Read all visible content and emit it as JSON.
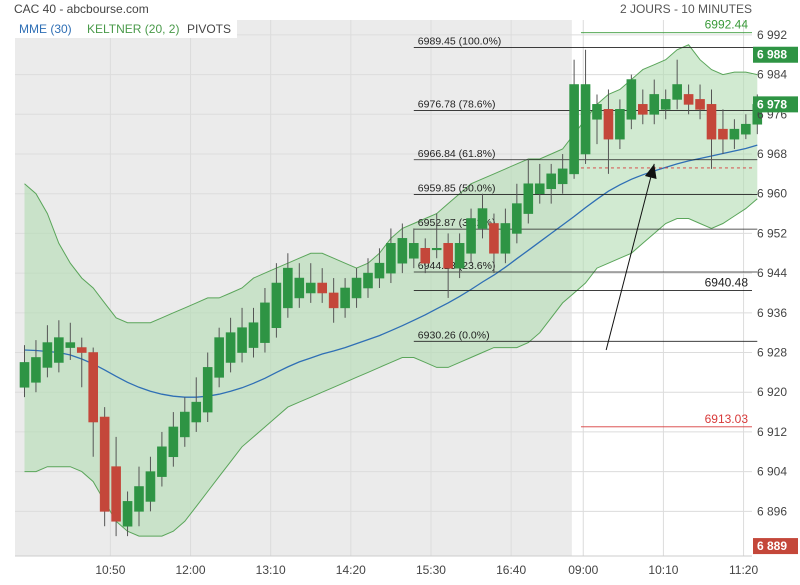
{
  "header": {
    "title": "CAC 40 - abcbourse.com",
    "period": "2 JOURS - 10 MINUTES"
  },
  "legend": [
    {
      "label": "MME (30)",
      "color": "#2f6fb5"
    },
    {
      "label": "KELTNER (20, 2)",
      "color": "#4a9a4a"
    },
    {
      "label": "PIVOTS",
      "color": "#444444"
    }
  ],
  "colors": {
    "up": "#2e9444",
    "down": "#c4473a",
    "band_fill": "#b3dcb3",
    "band_line": "#5aa55a",
    "ema": "#2f6fb5",
    "prev_session_bg": "#ebebeb",
    "grid": "#dcdcdc",
    "pivot_line": "#222222",
    "support": "#d83a3a",
    "resistance": "#3a9a3a"
  },
  "chart_data": {
    "type": "candlestick",
    "ylim": [
      6887,
      6995
    ],
    "y_ticks": [
      "6 992",
      "6 984",
      "6 976",
      "6 968",
      "6 960",
      "6 952",
      "6 944",
      "6 936",
      "6 928",
      "6 920",
      "6 912",
      "6 904",
      "6 896"
    ],
    "y_tick_values": [
      6992,
      6984,
      6976,
      6968,
      6960,
      6952,
      6944,
      6936,
      6928,
      6920,
      6912,
      6904,
      6896
    ],
    "x_ticks": [
      "10:50",
      "12:00",
      "13:10",
      "14:20",
      "15:30",
      "16:40",
      "09:00",
      "10:10",
      "11:20"
    ],
    "x_tick_index": [
      7.5,
      14.5,
      21.5,
      28.5,
      35.5,
      42.5,
      48.8,
      55.8,
      62.8
    ],
    "session_break_index": 47.8,
    "candles": [
      {
        "o": 6921.0,
        "h": 6929.5,
        "l": 6919.0,
        "c": 6926.0
      },
      {
        "o": 6922.0,
        "h": 6930.5,
        "l": 6920.0,
        "c": 6927.0
      },
      {
        "o": 6925.0,
        "h": 6933.5,
        "l": 6923.0,
        "c": 6930.0
      },
      {
        "o": 6926.0,
        "h": 6934.5,
        "l": 6924.0,
        "c": 6931.0
      },
      {
        "o": 6929.0,
        "h": 6934.0,
        "l": 6926.5,
        "c": 6930.0
      },
      {
        "o": 6929.0,
        "h": 6931.0,
        "l": 6921.0,
        "c": 6928.0
      },
      {
        "o": 6928.0,
        "h": 6929.0,
        "l": 6907.0,
        "c": 6914.0
      },
      {
        "o": 6915.0,
        "h": 6917.0,
        "l": 6893.0,
        "c": 6896.0
      },
      {
        "o": 6905.0,
        "h": 6911.0,
        "l": 6891.0,
        "c": 6894.0
      },
      {
        "o": 6893.0,
        "h": 6900.0,
        "l": 6891.0,
        "c": 6898.0
      },
      {
        "o": 6896.0,
        "h": 6905.0,
        "l": 6893.0,
        "c": 6901.0
      },
      {
        "o": 6898.0,
        "h": 6907.0,
        "l": 6896.0,
        "c": 6904.0
      },
      {
        "o": 6903.0,
        "h": 6912.0,
        "l": 6901.0,
        "c": 6909.0
      },
      {
        "o": 6907.0,
        "h": 6916.0,
        "l": 6905.0,
        "c": 6913.0
      },
      {
        "o": 6911.0,
        "h": 6919.0,
        "l": 6909.0,
        "c": 6916.0
      },
      {
        "o": 6914.0,
        "h": 6923.0,
        "l": 6912.0,
        "c": 6918.0
      },
      {
        "o": 6916.0,
        "h": 6928.0,
        "l": 6914.0,
        "c": 6925.0
      },
      {
        "o": 6923.0,
        "h": 6933.0,
        "l": 6921.0,
        "c": 6931.0
      },
      {
        "o": 6926.0,
        "h": 6935.0,
        "l": 6924.0,
        "c": 6932.0
      },
      {
        "o": 6928.0,
        "h": 6937.0,
        "l": 6926.0,
        "c": 6933.0
      },
      {
        "o": 6929.0,
        "h": 6937.0,
        "l": 6927.0,
        "c": 6934.0
      },
      {
        "o": 6930.0,
        "h": 6941.0,
        "l": 6928.0,
        "c": 6938.0
      },
      {
        "o": 6933.0,
        "h": 6946.0,
        "l": 6931.0,
        "c": 6942.0
      },
      {
        "o": 6937.0,
        "h": 6948.0,
        "l": 6935.0,
        "c": 6945.0
      },
      {
        "o": 6939.0,
        "h": 6946.0,
        "l": 6937.0,
        "c": 6943.0
      },
      {
        "o": 6940.0,
        "h": 6946.0,
        "l": 6938.0,
        "c": 6942.0
      },
      {
        "o": 6942.0,
        "h": 6945.0,
        "l": 6938.0,
        "c": 6940.0
      },
      {
        "o": 6940.0,
        "h": 6943.0,
        "l": 6934.0,
        "c": 6937.0
      },
      {
        "o": 6937.0,
        "h": 6943.0,
        "l": 6935.0,
        "c": 6941.0
      },
      {
        "o": 6939.0,
        "h": 6945.0,
        "l": 6937.0,
        "c": 6943.0
      },
      {
        "o": 6941.0,
        "h": 6947.0,
        "l": 6939.0,
        "c": 6944.0
      },
      {
        "o": 6943.0,
        "h": 6949.0,
        "l": 6941.0,
        "c": 6946.0
      },
      {
        "o": 6944.0,
        "h": 6953.0,
        "l": 6942.0,
        "c": 6950.0
      },
      {
        "o": 6946.0,
        "h": 6954.0,
        "l": 6944.0,
        "c": 6951.0
      },
      {
        "o": 6947.0,
        "h": 6953.0,
        "l": 6945.0,
        "c": 6950.0
      },
      {
        "o": 6949.0,
        "h": 6951.0,
        "l": 6944.0,
        "c": 6946.0
      },
      {
        "o": 6949.0,
        "h": 6956.0,
        "l": 6947.0,
        "c": 6949.0
      },
      {
        "o": 6950.0,
        "h": 6952.0,
        "l": 6939.0,
        "c": 6945.0
      },
      {
        "o": 6945.0,
        "h": 6952.0,
        "l": 6943.0,
        "c": 6950.0
      },
      {
        "o": 6948.0,
        "h": 6957.0,
        "l": 6946.0,
        "c": 6955.0
      },
      {
        "o": 6953.0,
        "h": 6960.0,
        "l": 6951.0,
        "c": 6957.0
      },
      {
        "o": 6954.0,
        "h": 6956.0,
        "l": 6944.0,
        "c": 6948.0
      },
      {
        "o": 6948.0,
        "h": 6957.0,
        "l": 6946.0,
        "c": 6954.0
      },
      {
        "o": 6952.0,
        "h": 6962.0,
        "l": 6950.0,
        "c": 6958.0
      },
      {
        "o": 6956.0,
        "h": 6967.0,
        "l": 6954.0,
        "c": 6962.0
      },
      {
        "o": 6960.0,
        "h": 6966.0,
        "l": 6958.0,
        "c": 6962.0
      },
      {
        "o": 6961.0,
        "h": 6966.0,
        "l": 6958.0,
        "c": 6964.0
      },
      {
        "o": 6962.0,
        "h": 6968.0,
        "l": 6960.0,
        "c": 6965.0
      },
      {
        "o": 6964.0,
        "h": 6987.0,
        "l": 6963.0,
        "c": 6982.0
      },
      {
        "o": 6968.0,
        "h": 6989.0,
        "l": 6966.0,
        "c": 6982.0
      },
      {
        "o": 6975.0,
        "h": 6980.0,
        "l": 6970.0,
        "c": 6978.0
      },
      {
        "o": 6977.0,
        "h": 6981.0,
        "l": 6964.0,
        "c": 6971.0
      },
      {
        "o": 6971.0,
        "h": 6979.0,
        "l": 6969.0,
        "c": 6977.0
      },
      {
        "o": 6975.0,
        "h": 6984.0,
        "l": 6973.0,
        "c": 6983.0
      },
      {
        "o": 6978.0,
        "h": 6981.0,
        "l": 6974.0,
        "c": 6976.0
      },
      {
        "o": 6976.0,
        "h": 6983.0,
        "l": 6974.0,
        "c": 6980.0
      },
      {
        "o": 6977.0,
        "h": 6981.0,
        "l": 6975.0,
        "c": 6979.0
      },
      {
        "o": 6979.0,
        "h": 6987.0,
        "l": 6977.0,
        "c": 6982.0
      },
      {
        "o": 6980.0,
        "h": 6982.0,
        "l": 6976.0,
        "c": 6978.0
      },
      {
        "o": 6979.0,
        "h": 6982.0,
        "l": 6975.0,
        "c": 6977.0
      },
      {
        "o": 6978.0,
        "h": 6981.0,
        "l": 6965.0,
        "c": 6971.0
      },
      {
        "o": 6973.0,
        "h": 6977.0,
        "l": 6968.0,
        "c": 6971.0
      },
      {
        "o": 6971.0,
        "h": 6975.0,
        "l": 6969.0,
        "c": 6973.0
      },
      {
        "o": 6972.0,
        "h": 6976.0,
        "l": 6971.0,
        "c": 6974.0
      },
      {
        "o": 6974.0,
        "h": 6980.0,
        "l": 6972.0,
        "c": 6978.0
      }
    ],
    "ema": [
      6928.5,
      6928.4,
      6928.2,
      6928.0,
      6927.5,
      6926.7,
      6925.7,
      6924.5,
      6923.2,
      6922.0,
      6921.0,
      6920.2,
      6919.6,
      6919.2,
      6919.0,
      6919.0,
      6919.2,
      6919.6,
      6920.2,
      6920.9,
      6921.8,
      6922.8,
      6924.0,
      6925.1,
      6926.1,
      6926.9,
      6927.7,
      6928.3,
      6929.0,
      6929.8,
      6930.6,
      6931.4,
      6932.4,
      6933.4,
      6934.5,
      6935.6,
      6936.8,
      6938.0,
      6939.3,
      6940.7,
      6942.2,
      6943.6,
      6945.2,
      6946.9,
      6948.6,
      6950.3,
      6952.0,
      6953.7,
      6955.4,
      6957.2,
      6958.9,
      6960.5,
      6961.8,
      6962.9,
      6963.8,
      6964.6,
      6965.3,
      6966.0,
      6966.6,
      6967.1,
      6967.6,
      6968.1,
      6968.6,
      6969.1,
      6969.8
    ],
    "keltner_upper": [
      6962.0,
      6960.0,
      6956.0,
      6950.0,
      6946.0,
      6943.0,
      6941.0,
      6938.0,
      6935.0,
      6934.0,
      6934.0,
      6934.0,
      6935.0,
      6936.0,
      6937.0,
      6938.0,
      6939.0,
      6939.0,
      6940.0,
      6941.0,
      6943.0,
      6944.0,
      6945.0,
      6946.0,
      6947.0,
      6948.0,
      6948.0,
      6947.0,
      6946.0,
      6945.0,
      6946.0,
      6948.0,
      6951.0,
      6953.0,
      6954.0,
      6955.0,
      6956.0,
      6958.0,
      6960.0,
      6962.0,
      6963.0,
      6964.0,
      6965.0,
      6966.0,
      6967.0,
      6967.0,
      6968.0,
      6969.0,
      6972.0,
      6975.0,
      6978.0,
      6980.0,
      6981.0,
      6983.0,
      6985.0,
      6986.0,
      6987.0,
      6989.0,
      6990.0,
      6987.0,
      6985.0,
      6984.0,
      6984.5,
      6984.5,
      6984.0
    ],
    "keltner_lower": [
      6904.0,
      6904.0,
      6905.0,
      6905.0,
      6905.0,
      6904.0,
      6902.0,
      6898.0,
      6894.0,
      6892.0,
      6891.0,
      6891.0,
      6891.0,
      6892.0,
      6894.0,
      6897.0,
      6900.0,
      6903.0,
      6906.0,
      6909.0,
      6911.0,
      6913.0,
      6915.0,
      6917.0,
      6918.0,
      6919.0,
      6920.0,
      6921.0,
      6922.0,
      6923.0,
      6924.0,
      6925.0,
      6926.0,
      6927.0,
      6927.0,
      6926.0,
      6925.0,
      6925.0,
      6926.0,
      6927.0,
      6928.0,
      6929.0,
      6929.0,
      6929.0,
      6930.0,
      6932.0,
      6935.0,
      6938.0,
      6940.0,
      6942.0,
      6945.0,
      6946.0,
      6947.0,
      6948.0,
      6950.0,
      6952.0,
      6954.0,
      6955.0,
      6955.0,
      6954.0,
      6953.0,
      6954.0,
      6955.5,
      6957.0,
      6959.0
    ],
    "fibonacci": [
      {
        "value": 6989.45,
        "label": "6989.45 (100.0%)"
      },
      {
        "value": 6976.78,
        "label": "6976.78 (78.6%)"
      },
      {
        "value": 6966.84,
        "label": "6966.84 (61.8%)"
      },
      {
        "value": 6959.85,
        "label": "6959.85 (50.0%)"
      },
      {
        "value": 6952.87,
        "label": "6952.87 (38.2%)"
      },
      {
        "value": 6944.23,
        "label": "6944.23 (23.6%)"
      },
      {
        "value": 6930.26,
        "label": "6930.26 (0.0%)"
      }
    ],
    "fibonacci_x_range": [
      34,
      64
    ],
    "levels": [
      {
        "value": 6992.44,
        "label": "6992.44",
        "kind": "resistance"
      },
      {
        "value": 6940.48,
        "label": "6940.48",
        "kind": "pivot"
      },
      {
        "value": 6913.03,
        "label": "6913.03",
        "kind": "support"
      }
    ],
    "dashed_line": {
      "value": 6965.2,
      "from_index": 48.6
    },
    "arrow": {
      "from_index": 50.8,
      "from_value": 6928.5,
      "to_index": 55.0,
      "to_value": 6966.0
    },
    "price_badges": [
      {
        "value": 6988.0,
        "label": "6 988",
        "color": "#2e9444"
      },
      {
        "value": 6978.0,
        "label": "6 978",
        "color": "#2e9444"
      },
      {
        "value": 6889.0,
        "label": "6 889",
        "color": "#c4473a"
      }
    ]
  }
}
